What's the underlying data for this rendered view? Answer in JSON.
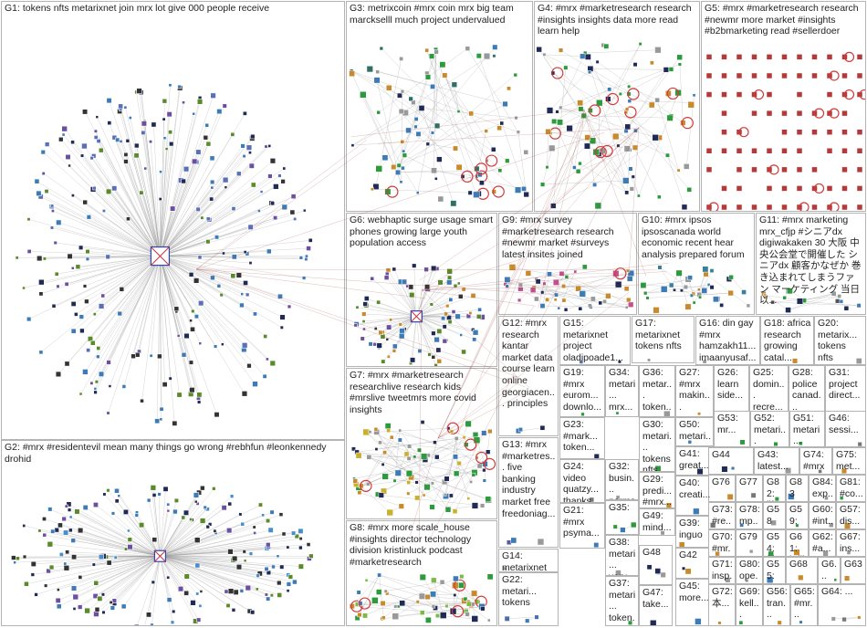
{
  "groups": [
    {
      "id": "G1",
      "label": "G1: tokens nfts metarixnet join mrx lot give 000 people receive",
      "kind": "hub",
      "color": "#5a6fb5"
    },
    {
      "id": "G2",
      "label": "G2: #mrx #residentevil mean many things go wrong #rebhfun #leonkennedy drohid",
      "kind": "hub",
      "color": "#4a8dc8"
    },
    {
      "id": "G3",
      "label": "G3: metrixcoin #mrx coin mrx big team marckselll much project undervalued",
      "kind": "cluster",
      "color": "#2f6f66"
    },
    {
      "id": "G4",
      "label": "G4: #mrx #marketresearch research #insights insights data more read learn help",
      "kind": "cluster",
      "color": "#2e9a3e"
    },
    {
      "id": "G5",
      "label": "G5: #mrx #marketresearch research #newmr more market #insights #b2bmarketing read #sellerdoer",
      "kind": "grid",
      "color": "#b23a3a"
    },
    {
      "id": "G6",
      "label": "G6: webhaptic surge usage smart phones growing large youth population access",
      "kind": "hub",
      "color": "#c98a2e"
    },
    {
      "id": "G7",
      "label": "G7: #mrx #marketresearch researchlive research kids #mrslive tweetmrs more covid insights",
      "kind": "cluster",
      "color": "#c9b02e"
    },
    {
      "id": "G8",
      "label": "G8: #mrx more scale_house #insights director technology division kristinluck podcast #marketresearch",
      "kind": "cluster",
      "color": "#7fb84a"
    },
    {
      "id": "G9",
      "label": "G9: #mrx survey #marketresearch research #newmr market #surveys latest insites joined",
      "kind": "cluster",
      "color": "#c24f8e"
    },
    {
      "id": "G10",
      "label": "G10: #mrx ipsos ipsoscanada world economic recent hear analysis prepared forum",
      "kind": "small",
      "color": "#3a7f9a"
    },
    {
      "id": "G11",
      "label": "G11: #mrx marketing mrx_cfjp #シニアdx digiwakaken 30 大阪 中央公会堂で開催した シニアdx 顧客かなぜか 巻き込まれてしまうファン マーケティング 当日以...",
      "kind": "small",
      "color": "#555555"
    },
    {
      "id": "G12",
      "label": "G12: #mrx research kantar market data course learn online georgiacen... principles",
      "kind": "small",
      "color": "#3b6fb0"
    },
    {
      "id": "G13",
      "label": "G13: #mrx #marketres... five banking industry market free freedoniag...",
      "kind": "small",
      "color": "#5b5b9a"
    },
    {
      "id": "G14",
      "label": "G14: metarixnet tokens nfts",
      "kind": "small",
      "color": "#4d6fa8"
    },
    {
      "id": "G15",
      "label": "G15: metarixnet project oladipoade1...",
      "kind": "small",
      "color": "#4d6fa8"
    },
    {
      "id": "G16",
      "label": "G16: din gay #mrx hamzakh11... imaanyusaf...",
      "kind": "small",
      "color": "#777777"
    },
    {
      "id": "G17",
      "label": "G17: metarixnet tokens nfts",
      "kind": "small",
      "color": "#4d6fa8"
    },
    {
      "id": "G18",
      "label": "G18: africa research growing catal...",
      "kind": "small",
      "color": "#777777"
    },
    {
      "id": "G19",
      "label": "G19: #mrx eurom... downlo...",
      "kind": "small",
      "color": "#777777"
    },
    {
      "id": "G20",
      "label": "G20: metarix... tokens nfts",
      "kind": "small",
      "color": "#4d6fa8"
    },
    {
      "id": "G21",
      "label": "G21: #mrx psyma...",
      "kind": "small",
      "color": "#a33"
    },
    {
      "id": "G22",
      "label": "G22: metari... tokens",
      "kind": "small",
      "color": "#4d6fa8"
    },
    {
      "id": "G23",
      "label": "G23: #mark... token...",
      "kind": "small",
      "color": "#777777"
    },
    {
      "id": "G24",
      "label": "G24: video quatzy... thanks...",
      "kind": "small",
      "color": "#777777"
    },
    {
      "id": "G25",
      "label": "G25: domin... recre...",
      "kind": "small",
      "color": "#777777"
    },
    {
      "id": "G26",
      "label": "G26: learn side...",
      "kind": "small",
      "color": "#777777"
    },
    {
      "id": "G27",
      "label": "G27: #mrx makin...",
      "kind": "small",
      "color": "#777777"
    },
    {
      "id": "G28",
      "label": "G28: police canad...",
      "kind": "small",
      "color": "#777777"
    },
    {
      "id": "G29",
      "label": "G29: predi... #mrx...",
      "kind": "small",
      "color": "#777777"
    },
    {
      "id": "G30",
      "label": "G30: metari... tokens nfts",
      "kind": "small",
      "color": "#4d6fa8"
    },
    {
      "id": "G31",
      "label": "G31: project direct...",
      "kind": "small",
      "color": "#777777"
    },
    {
      "id": "G32",
      "label": "G32: busin... norms...",
      "kind": "small",
      "color": "#777777"
    },
    {
      "id": "G33",
      "label": "G33: #mark...",
      "kind": "small",
      "color": "#777777"
    },
    {
      "id": "G34",
      "label": "G34: metari... mrx...",
      "kind": "small",
      "color": "#4d6fa8"
    },
    {
      "id": "G35",
      "label": "G35:",
      "kind": "small",
      "color": "#777777"
    },
    {
      "id": "G36",
      "label": "G36: metar... token...",
      "kind": "small",
      "color": "#4d6fa8"
    },
    {
      "id": "G37",
      "label": "G37: metari... token...",
      "kind": "small",
      "color": "#4d6fa8"
    },
    {
      "id": "G38",
      "label": "G38: metari... very...",
      "kind": "small",
      "color": "#4d6fa8"
    },
    {
      "id": "G39",
      "label": "G39: inguo",
      "kind": "small",
      "color": "#777777"
    },
    {
      "id": "G40",
      "label": "G40: creati...",
      "kind": "small",
      "color": "#777777"
    },
    {
      "id": "G41",
      "label": "G41: great...",
      "kind": "small",
      "color": "#777777"
    },
    {
      "id": "G42",
      "label": "G42",
      "kind": "small",
      "color": "#777777"
    },
    {
      "id": "G43",
      "label": "G43: latest...",
      "kind": "small",
      "color": "#777777"
    },
    {
      "id": "G44",
      "label": "G44",
      "kind": "small",
      "color": "#777777"
    },
    {
      "id": "G45",
      "label": "G45: more...",
      "kind": "small",
      "color": "#777777"
    },
    {
      "id": "G46",
      "label": "G46: sessi...",
      "kind": "small",
      "color": "#777777"
    },
    {
      "id": "G47",
      "label": "G47: take...",
      "kind": "small",
      "color": "#777777"
    },
    {
      "id": "G48",
      "label": "G48",
      "kind": "small",
      "color": "#777777"
    },
    {
      "id": "G49",
      "label": "G49: mind...",
      "kind": "small",
      "color": "#777777"
    },
    {
      "id": "G50",
      "label": "G50: metari...",
      "kind": "small",
      "color": "#4d6fa8"
    },
    {
      "id": "G51",
      "label": "G51: metari...",
      "kind": "small",
      "color": "#4d6fa8"
    },
    {
      "id": "G52",
      "label": "G52: metari...",
      "kind": "small",
      "color": "#4d6fa8"
    },
    {
      "id": "G53",
      "label": "G53: mr...",
      "kind": "small",
      "color": "#777777"
    },
    {
      "id": "G54",
      "label": "G54: frie...",
      "kind": "small",
      "color": "#777777"
    },
    {
      "id": "G55",
      "label": "G55: #mr...",
      "kind": "small",
      "color": "#777777"
    },
    {
      "id": "G56",
      "label": "G56: tran...",
      "kind": "small",
      "color": "#777777"
    },
    {
      "id": "G57",
      "label": "G57: dis...",
      "kind": "small",
      "color": "#777777"
    },
    {
      "id": "G58",
      "label": "G58",
      "kind": "small",
      "color": "#777777"
    },
    {
      "id": "G59",
      "label": "G59: test...",
      "kind": "small",
      "color": "#777777"
    },
    {
      "id": "G60",
      "label": "G60: #int...",
      "kind": "small",
      "color": "#777777"
    },
    {
      "id": "G61",
      "label": "G61: brill...",
      "kind": "small",
      "color": "#777777"
    },
    {
      "id": "G62",
      "label": "G62: #a...",
      "kind": "small",
      "color": "#777777"
    },
    {
      "id": "G63",
      "label": "G63",
      "kind": "small",
      "color": "#777777"
    },
    {
      "id": "G64",
      "label": "G64: ...",
      "kind": "small",
      "color": "#777777"
    },
    {
      "id": "G65",
      "label": "G65: #mr...",
      "kind": "small",
      "color": "#777777"
    },
    {
      "id": "G66",
      "label": "G6...",
      "kind": "small",
      "color": "#777777"
    },
    {
      "id": "G67",
      "label": "G67: ins...",
      "kind": "small",
      "color": "#777777"
    },
    {
      "id": "G68",
      "label": "G68",
      "kind": "small",
      "color": "#777777"
    },
    {
      "id": "G69",
      "label": "G69: kell...",
      "kind": "small",
      "color": "#777777"
    },
    {
      "id": "G70",
      "label": "G70: #mr...",
      "kind": "small",
      "color": "#777777"
    },
    {
      "id": "G71",
      "label": "G71: insp...",
      "kind": "small",
      "color": "#777777"
    },
    {
      "id": "G72",
      "label": "G72: 本...",
      "kind": "small",
      "color": "#777777"
    },
    {
      "id": "G73",
      "label": "G73: #re...",
      "kind": "small",
      "color": "#777777"
    },
    {
      "id": "G74",
      "label": "G74: #mrx",
      "kind": "small",
      "color": "#777777"
    },
    {
      "id": "G75",
      "label": "G75: met...",
      "kind": "small",
      "color": "#4d6fa8"
    },
    {
      "id": "G76",
      "label": "G76",
      "kind": "small",
      "color": "#777777"
    },
    {
      "id": "G77",
      "label": "G77",
      "kind": "small",
      "color": "#777777"
    },
    {
      "id": "G78",
      "label": "G78: mp...",
      "kind": "small",
      "color": "#777777"
    },
    {
      "id": "G79",
      "label": "G79",
      "kind": "small",
      "color": "#777777"
    },
    {
      "id": "G80",
      "label": "G80: ope...",
      "kind": "small",
      "color": "#777777"
    },
    {
      "id": "G81",
      "label": "G81: #co...",
      "kind": "small",
      "color": "#777777"
    },
    {
      "id": "G82",
      "label": "G82: lifes...",
      "kind": "small",
      "color": "#777777"
    },
    {
      "id": "G83",
      "label": "G83",
      "kind": "small",
      "color": "#777777"
    },
    {
      "id": "G84",
      "label": "G84: exp...",
      "kind": "small",
      "color": "#777777"
    }
  ]
}
